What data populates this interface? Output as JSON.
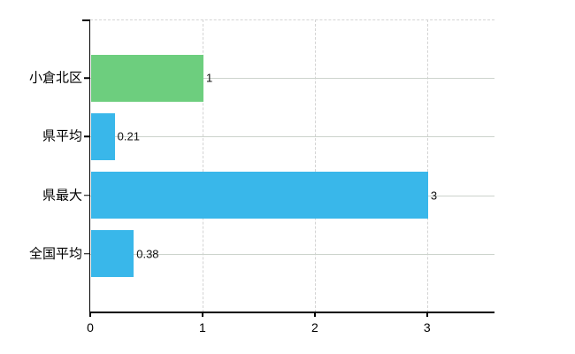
{
  "chart_data": {
    "type": "bar",
    "orientation": "horizontal",
    "title": "",
    "xlabel": "",
    "ylabel": "",
    "categories": [
      "小倉北区",
      "県平均",
      "県最大",
      "全国平均"
    ],
    "values": [
      1,
      0.21,
      3,
      0.38
    ],
    "value_labels": [
      "1",
      "0.21",
      "3",
      "0.38"
    ],
    "bar_colors": [
      "#6dce7e",
      "#39b7ea",
      "#39b7ea",
      "#39b7ea"
    ],
    "x_ticks": [
      "0",
      "1",
      "2",
      "3"
    ],
    "x_tick_values": [
      0,
      1,
      2,
      3
    ],
    "xlim": [
      0,
      3.6
    ],
    "grid": {
      "vertical": "dashed",
      "horizontal_category_lines": "solid",
      "top_border": "dashed",
      "color": "#d4d4d4"
    },
    "legend": "none",
    "axis_color": "#000000",
    "text_color": "#000000",
    "background": "#ffffff"
  }
}
